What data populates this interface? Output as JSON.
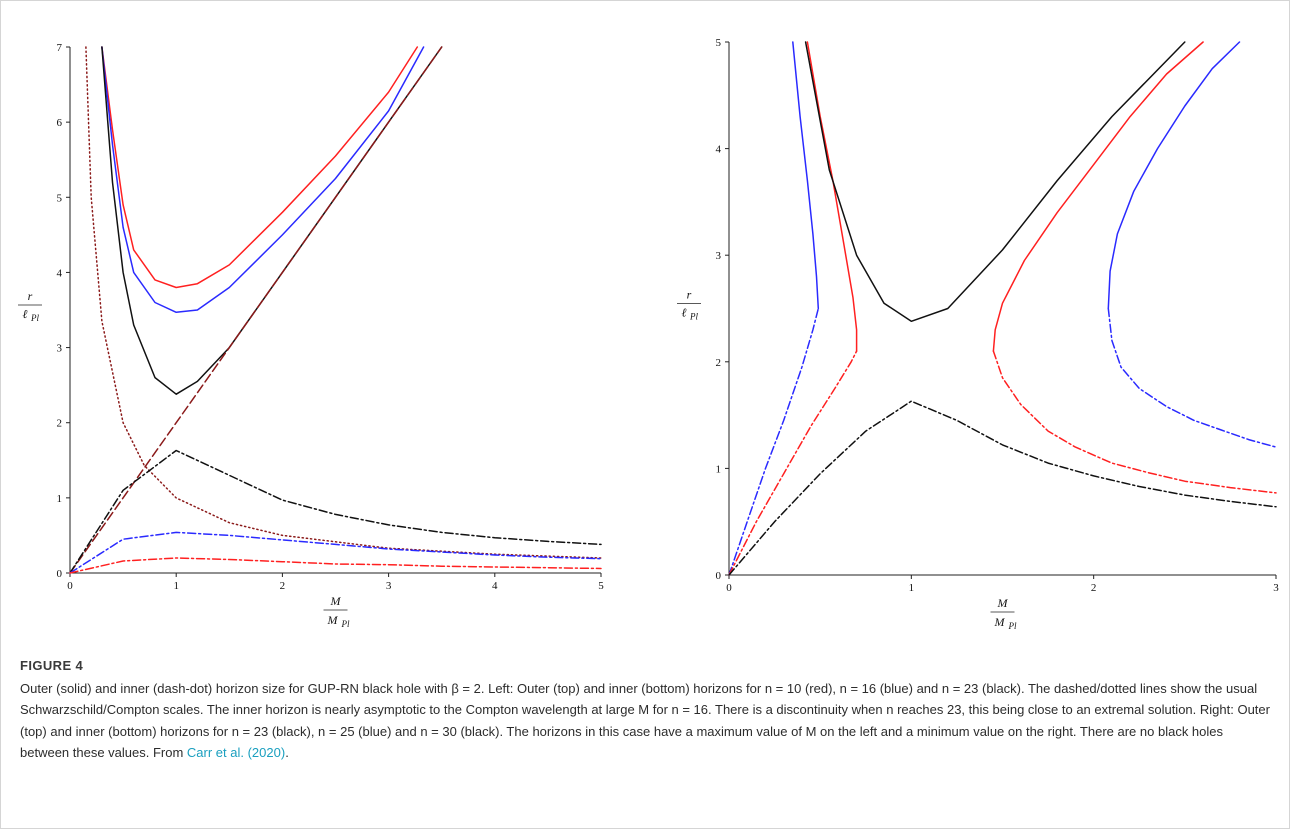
{
  "figure": {
    "label": "FIGURE 4",
    "caption_segments": [
      "Outer (solid) and inner (dash-dot) horizon size for GUP-RN black hole with β = 2. Left: Outer (top) and inner (bottom) horizons for n = 10 (red), n = 16 (blue) and n = 23 (black). The dashed/dotted lines show the usual Schwarzschild/Compton scales. The inner horizon is nearly asymptotic to the Compton wavelength at large M for n = 16. There is a discontinuity when n reaches 23, this being close to an extremal solution. Right: Outer (top) and inner (bottom) horizons for n = 23 (black), n = 25 (blue) and n = 30 (black). The horizons in this case have a maximum value of M on the left and a minimum value on the right. There are no black holes between these values. From ",
      "."
    ],
    "citation": "Carr et al. (2020)"
  },
  "colors": {
    "red": "#ff2020",
    "blue": "#2a2aff",
    "black": "#111111",
    "darkred": "#8b1a1a",
    "caption_link": "#1a9fbf"
  },
  "chart_data": [
    {
      "type": "line",
      "xlabel": {
        "main": "M",
        "sub_main": "M",
        "sub": "Pl"
      },
      "ylabel": {
        "main": "r",
        "sub_main": "ℓ",
        "sub": "Pl"
      },
      "xlim": [
        0,
        5
      ],
      "ylim": [
        0,
        7
      ],
      "xticks": [
        "0",
        "1",
        "2",
        "3",
        "4",
        "5"
      ],
      "yticks": [
        "0",
        "1",
        "2",
        "3",
        "4",
        "5",
        "6",
        "7"
      ],
      "grid": false,
      "series": [
        {
          "color": "red",
          "style": "solid",
          "x": [
            0.3,
            0.4,
            0.5,
            0.6,
            0.8,
            1.0,
            1.2,
            1.5,
            2.0,
            2.5,
            3.0,
            3.27
          ],
          "y": [
            7.0,
            5.9,
            4.9,
            4.3,
            3.9,
            3.8,
            3.85,
            4.1,
            4.8,
            5.55,
            6.4,
            7.0
          ]
        },
        {
          "color": "blue",
          "style": "solid",
          "x": [
            0.3,
            0.4,
            0.5,
            0.6,
            0.8,
            1.0,
            1.2,
            1.5,
            2.0,
            2.5,
            3.0,
            3.33
          ],
          "y": [
            7.0,
            5.7,
            4.6,
            4.0,
            3.6,
            3.47,
            3.5,
            3.8,
            4.5,
            5.25,
            6.15,
            7.0
          ]
        },
        {
          "color": "black",
          "style": "solid",
          "x": [
            0.3,
            0.4,
            0.5,
            0.6,
            0.8,
            1.0,
            1.2,
            1.5,
            2.0,
            2.5,
            3.0,
            3.5
          ],
          "y": [
            7.0,
            5.2,
            4.0,
            3.3,
            2.6,
            2.38,
            2.55,
            3.0,
            4.0,
            5.0,
            6.0,
            7.0
          ]
        },
        {
          "color": "darkred",
          "style": "dashed",
          "x": [
            0,
            3.5
          ],
          "y": [
            0,
            7.0
          ]
        },
        {
          "color": "darkred",
          "style": "dotted",
          "x": [
            0.15,
            0.2,
            0.3,
            0.5,
            0.7,
            1.0,
            1.5,
            2.0,
            3.0,
            4.0,
            5.0
          ],
          "y": [
            7.0,
            5.0,
            3.35,
            2.0,
            1.43,
            1.0,
            0.67,
            0.5,
            0.33,
            0.25,
            0.2
          ]
        },
        {
          "color": "black",
          "style": "dashdot",
          "x": [
            0,
            0.5,
            1.0,
            1.5,
            2.0,
            2.5,
            3.0,
            3.5,
            4.0,
            4.5,
            5.0
          ],
          "y": [
            0,
            1.1,
            1.63,
            1.3,
            0.97,
            0.78,
            0.64,
            0.54,
            0.47,
            0.42,
            0.38
          ]
        },
        {
          "color": "blue",
          "style": "dashdot",
          "x": [
            0,
            0.5,
            1.0,
            1.5,
            2.0,
            2.5,
            3.0,
            3.5,
            4.0,
            4.5,
            5.0
          ],
          "y": [
            0,
            0.45,
            0.54,
            0.5,
            0.44,
            0.38,
            0.32,
            0.28,
            0.24,
            0.21,
            0.19
          ]
        },
        {
          "color": "red",
          "style": "dashdot",
          "x": [
            0,
            0.5,
            1.0,
            1.5,
            2.0,
            2.5,
            3.0,
            3.5,
            4.0,
            4.5,
            5.0
          ],
          "y": [
            0,
            0.16,
            0.2,
            0.18,
            0.15,
            0.12,
            0.11,
            0.09,
            0.08,
            0.07,
            0.06
          ]
        }
      ]
    },
    {
      "type": "line",
      "xlabel": {
        "main": "M",
        "sub_main": "M",
        "sub": "Pl"
      },
      "ylabel": {
        "main": "r",
        "sub_main": "ℓ",
        "sub": "Pl"
      },
      "xlim": [
        0,
        3
      ],
      "ylim": [
        0,
        5
      ],
      "xticks": [
        "0",
        "1",
        "2",
        "3"
      ],
      "yticks": [
        "0",
        "1",
        "2",
        "3",
        "4",
        "5"
      ],
      "grid": false,
      "series": [
        {
          "color": "blue",
          "style": "solid",
          "x": [
            0.35,
            0.39,
            0.43,
            0.46,
            0.48,
            0.49
          ],
          "y": [
            5.0,
            4.3,
            3.7,
            3.2,
            2.8,
            2.5
          ]
        },
        {
          "color": "red",
          "style": "solid",
          "x": [
            0.43,
            0.5,
            0.57,
            0.63,
            0.68,
            0.7,
            0.7
          ],
          "y": [
            5.0,
            4.3,
            3.7,
            3.1,
            2.6,
            2.3,
            2.1
          ]
        },
        {
          "color": "black",
          "style": "solid",
          "x": [
            0.42,
            0.55,
            0.7,
            0.85,
            1.0,
            1.2,
            1.5,
            1.8,
            2.1,
            2.5
          ],
          "y": [
            5.0,
            3.8,
            3.0,
            2.55,
            2.38,
            2.5,
            3.05,
            3.7,
            4.3,
            5.0
          ]
        },
        {
          "color": "red",
          "style": "solid",
          "x": [
            1.45,
            1.46,
            1.5,
            1.62,
            1.8,
            2.0,
            2.2,
            2.4,
            2.6
          ],
          "y": [
            2.1,
            2.3,
            2.55,
            2.95,
            3.4,
            3.85,
            4.3,
            4.7,
            5.0
          ]
        },
        {
          "color": "blue",
          "style": "solid",
          "x": [
            2.08,
            2.09,
            2.13,
            2.22,
            2.35,
            2.5,
            2.65,
            2.8
          ],
          "y": [
            2.5,
            2.85,
            3.2,
            3.6,
            4.0,
            4.4,
            4.75,
            5.0
          ]
        },
        {
          "color": "blue",
          "style": "dashdot",
          "x": [
            0,
            0.1,
            0.2,
            0.3,
            0.4,
            0.46,
            0.49
          ],
          "y": [
            0,
            0.5,
            1.0,
            1.45,
            1.95,
            2.3,
            2.5
          ]
        },
        {
          "color": "red",
          "style": "dashdot",
          "x": [
            0,
            0.15,
            0.3,
            0.45,
            0.58,
            0.67,
            0.7
          ],
          "y": [
            0,
            0.5,
            0.95,
            1.4,
            1.75,
            2.0,
            2.1
          ]
        },
        {
          "color": "black",
          "style": "dashdot",
          "x": [
            0,
            0.25,
            0.5,
            0.75,
            1.0,
            1.25,
            1.5,
            1.75,
            2.0,
            2.25,
            2.5,
            2.75,
            3.0
          ],
          "y": [
            0,
            0.5,
            0.95,
            1.35,
            1.63,
            1.45,
            1.22,
            1.05,
            0.93,
            0.83,
            0.75,
            0.69,
            0.64
          ]
        },
        {
          "color": "red",
          "style": "dashdot",
          "x": [
            1.45,
            1.5,
            1.6,
            1.75,
            1.9,
            2.1,
            2.3,
            2.5,
            2.75,
            3.0
          ],
          "y": [
            2.1,
            1.85,
            1.6,
            1.35,
            1.2,
            1.05,
            0.96,
            0.88,
            0.82,
            0.77
          ]
        },
        {
          "color": "blue",
          "style": "dashdot",
          "x": [
            2.08,
            2.1,
            2.15,
            2.25,
            2.4,
            2.55,
            2.7,
            2.85,
            3.0
          ],
          "y": [
            2.5,
            2.2,
            1.95,
            1.75,
            1.58,
            1.45,
            1.36,
            1.27,
            1.2
          ]
        }
      ]
    }
  ]
}
